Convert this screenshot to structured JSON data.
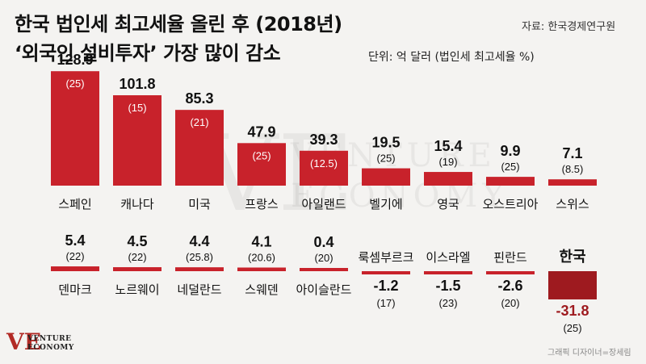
{
  "title_lines": [
    "한국 법인세 최고세율 올린 후 (2018년)",
    "‘외국인 설비투자’ 가장 많이 감소"
  ],
  "source": "자료: 한국경제연구원",
  "unit": "단위: 억 달러 (법인세 최고세율 %)",
  "watermark": {
    "mark": "VE",
    "line1": "VENTURE",
    "line2": "ECONOMY"
  },
  "logo": {
    "mark": "VE",
    "line1": "VENTURE",
    "line2": "ECONOMY"
  },
  "credit": "그래픽 디자이너=장세림",
  "colors": {
    "bar": "#c8222b",
    "highlight": "#9e1a1f",
    "background": "#f4f3f1"
  },
  "chart_data": [
    {
      "type": "bar",
      "categories": [
        "스페인",
        "캐나다",
        "미국",
        "프랑스",
        "아일랜드",
        "벨기에",
        "영국",
        "오스트리아",
        "스위스"
      ],
      "values": [
        128.9,
        101.8,
        85.3,
        47.9,
        39.3,
        19.5,
        15.4,
        9.9,
        7.1
      ],
      "value_labels": [
        "128.9",
        "101.8",
        "85.3",
        "47.9",
        "39.3",
        "19.5",
        "15.4",
        "9.9",
        "7.1"
      ],
      "rate_labels": [
        "(25)",
        "(15)",
        "(21)",
        "(25)",
        "(12.5)",
        "(25)",
        "(19)",
        "(25)",
        "(8.5)"
      ]
    },
    {
      "type": "bar",
      "categories": [
        "덴마크",
        "노르웨이",
        "네덜란드",
        "스웨덴",
        "아이슬란드",
        "룩셈부르크",
        "이스라엘",
        "핀란드",
        "한국"
      ],
      "values": [
        5.4,
        4.5,
        4.4,
        4.1,
        0.4,
        -1.2,
        -1.5,
        -2.6,
        -31.8
      ],
      "value_labels": [
        "5.4",
        "4.5",
        "4.4",
        "4.1",
        "0.4",
        "-1.2",
        "-1.5",
        "-2.6",
        "-31.8"
      ],
      "rate_labels": [
        "(22)",
        "(22)",
        "(25.8)",
        "(20.6)",
        "(20)",
        "(17)",
        "(23)",
        "(20)",
        "(25)"
      ],
      "highlight": "한국"
    }
  ]
}
